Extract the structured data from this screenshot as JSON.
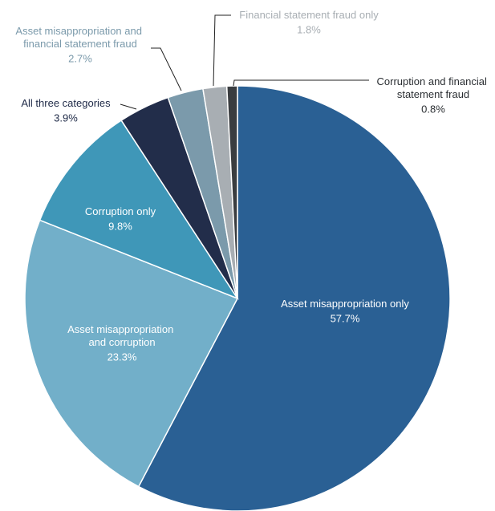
{
  "chart_data": {
    "type": "pie",
    "categories": [
      "Asset misappropriation only",
      "Asset misappropriation and corruption",
      "Corruption only",
      "All three categories",
      "Asset misappropriation and financial statement fraud",
      "Financial statement fraud only",
      "Corruption and financial statement fraud"
    ],
    "values": [
      57.7,
      23.3,
      9.8,
      3.9,
      2.7,
      1.8,
      0.8
    ],
    "value_labels": [
      "57.7%",
      "23.3%",
      "9.8%",
      "3.9%",
      "2.7%",
      "1.8%",
      "0.8%"
    ],
    "colors": [
      "#2a6094",
      "#72afc9",
      "#3f97b8",
      "#222d4a",
      "#7b9aab",
      "#a8aeb3",
      "#3a3d40"
    ]
  }
}
